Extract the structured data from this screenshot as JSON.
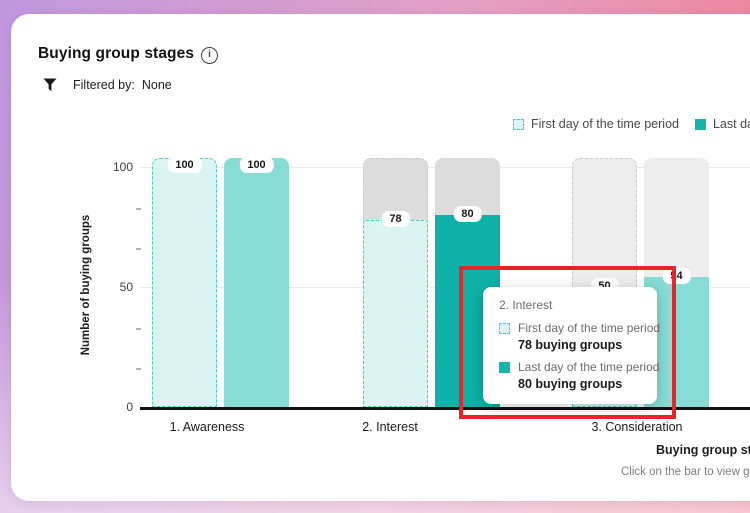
{
  "header": {
    "title": "Buying group stages"
  },
  "filter": {
    "label": "Filtered by:",
    "value": "None"
  },
  "legend": [
    {
      "label": "First day of the time period"
    },
    {
      "label": "Last day of the time period"
    }
  ],
  "chart_data": {
    "type": "bar",
    "title": "Buying group stages",
    "xlabel": "Buying group stages",
    "ylabel": "Number of buying groups",
    "ylim": [
      0,
      100
    ],
    "yticks": [
      0,
      50,
      100
    ],
    "grid": "horizontal",
    "legend_position": "top-right",
    "categories": [
      "1. Awareness",
      "2. Interest",
      "3. Consideration"
    ],
    "series": [
      {
        "name": "First day of the time period",
        "values": [
          100,
          78,
          50
        ]
      },
      {
        "name": "Last day of the time period",
        "values": [
          100,
          80,
          54
        ]
      }
    ],
    "bar_labels": [
      [
        100,
        100
      ],
      [
        78,
        80
      ],
      [
        50,
        54
      ]
    ],
    "hovered_category": "2. Interest",
    "footnote": "Click on the bar to view gen AI"
  },
  "tooltip": {
    "title": "2. Interest",
    "rows": [
      {
        "label": "First day of the time period",
        "value": "78 buying groups"
      },
      {
        "label": "Last day of the time period",
        "value": "80 buying groups"
      }
    ]
  },
  "colors": {
    "first_day_fill": "#d9f4f1",
    "first_day_border": "#44cfc5",
    "last_day_normal": "#87dcd6",
    "last_day_hover": "#0eb1a7",
    "track_normal": "#ededed",
    "track_hover": "#dcdcdc",
    "track_dash_border": "#cccccc",
    "accent_teal": "#14b5ab",
    "annotation_red": "#e6252b"
  }
}
